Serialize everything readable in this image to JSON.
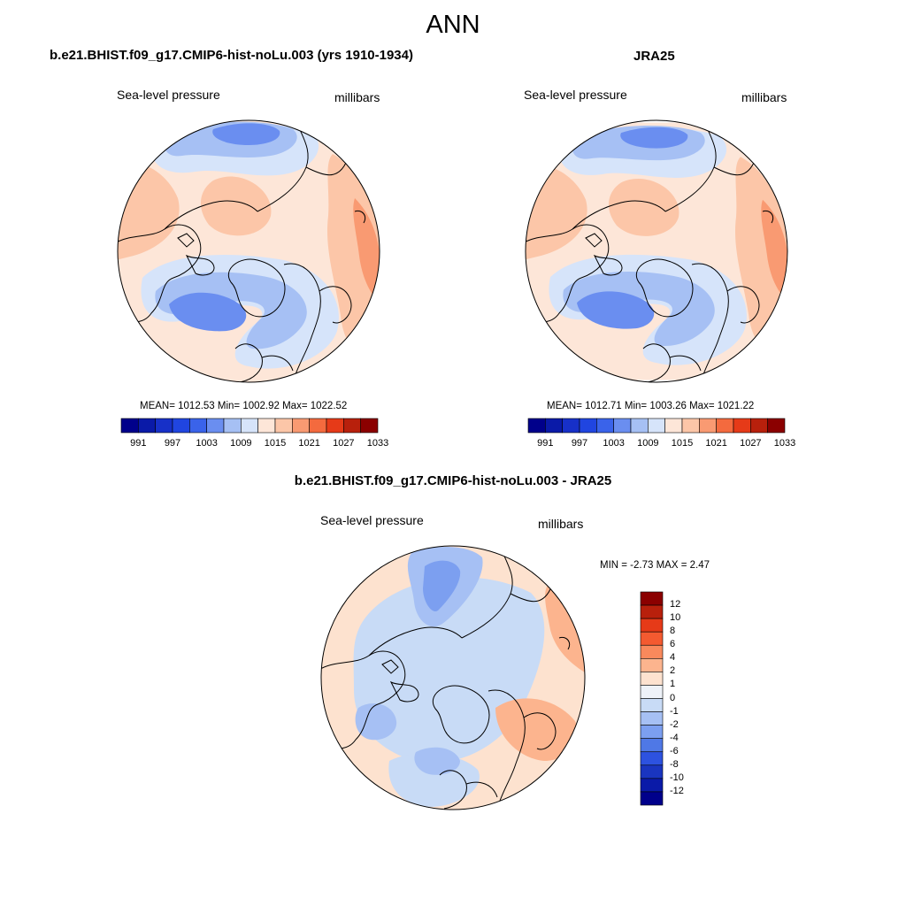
{
  "title": "ANN",
  "panels": [
    {
      "id": "model",
      "title": "b.e21.BHIST.f09_g17.CMIP6-hist-noLu.003 (yrs 1910-1934)",
      "variable": "Sea-level pressure",
      "units": "millibars",
      "stats": "MEAN= 1012.53  Min= 1002.92  Max= 1022.52",
      "colorbar_labels": [
        "991",
        "997",
        "1003",
        "1009",
        "1015",
        "1021",
        "1027",
        "1033"
      ]
    },
    {
      "id": "obs",
      "title": "JRA25",
      "variable": "Sea-level pressure",
      "units": "millibars",
      "stats": "MEAN= 1012.71  Min= 1003.26  Max= 1021.22",
      "colorbar_labels": [
        "991",
        "997",
        "1003",
        "1009",
        "1015",
        "1021",
        "1027",
        "1033"
      ]
    },
    {
      "id": "diff",
      "title": "b.e21.BHIST.f09_g17.CMIP6-hist-noLu.003 - JRA25",
      "variable": "Sea-level pressure",
      "units": "millibars",
      "stats": "MIN =  -2.73 MAX =   2.47",
      "colorbar_labels": [
        "12",
        "10",
        "8",
        "6",
        "4",
        "2",
        "1",
        "0",
        "-1",
        "-2",
        "-4",
        "-6",
        "-8",
        "-10",
        "-12"
      ]
    }
  ],
  "colors": {
    "abs_scale": [
      "#00008b",
      "#0a1aa8",
      "#1730c8",
      "#2045e0",
      "#3a63ea",
      "#6a8ef0",
      "#a6c0f4",
      "#d6e4fa",
      "#fde6d8",
      "#fcc6a8",
      "#f99a72",
      "#f46a3e",
      "#e63a18",
      "#b8200c",
      "#8b0000"
    ],
    "diff_scale": [
      "#8b0000",
      "#b8200c",
      "#e63a18",
      "#f45a30",
      "#f9895c",
      "#fcb48e",
      "#fde2cf",
      "#eef2f8",
      "#c8dbf6",
      "#a6c0f4",
      "#7c9ff0",
      "#4f78e6",
      "#2d52e0",
      "#1a35c0",
      "#0a1aa8",
      "#00008b"
    ],
    "land_outline": "#000000"
  }
}
